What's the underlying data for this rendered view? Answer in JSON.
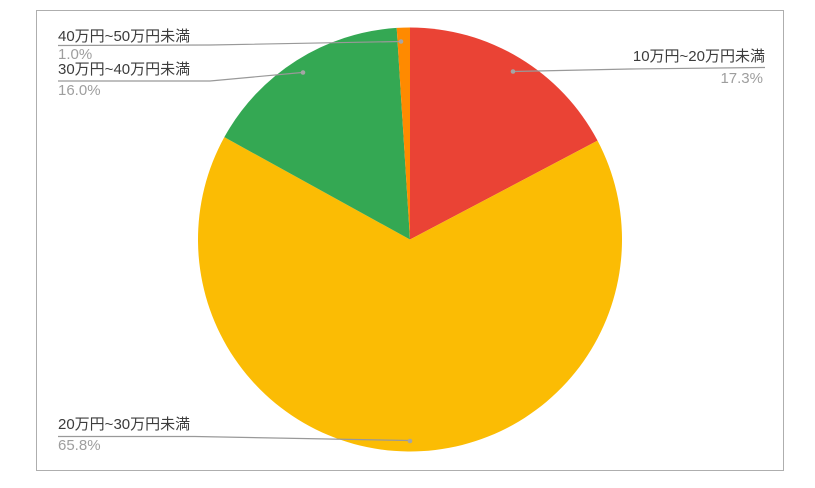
{
  "chart_data": {
    "type": "pie",
    "title": "",
    "unit": "%",
    "direction": "clockwise",
    "start_angle_deg": 0,
    "legend": "callout-labels",
    "slices": [
      {
        "label": "10万円~20万円未満",
        "value": 17.3,
        "pct_label": "17.3%",
        "color": "#EA4335"
      },
      {
        "label": "20万円~30万円未満",
        "value": 65.8,
        "pct_label": "65.8%",
        "color": "#FBBC04"
      },
      {
        "label": "30万円~40万円未満",
        "value": 16.0,
        "pct_label": "16.0%",
        "color": "#34A853"
      },
      {
        "label": "40万円~50万円未満",
        "value": 1.0,
        "pct_label": "1.0%",
        "color": "#FF8A00"
      }
    ],
    "style": {
      "label_color": "#3c3c3c",
      "pct_color": "#9e9e9e",
      "leader_line_color": "#999999",
      "frame_border_color": "#aeaeae",
      "background": "#ffffff"
    }
  }
}
